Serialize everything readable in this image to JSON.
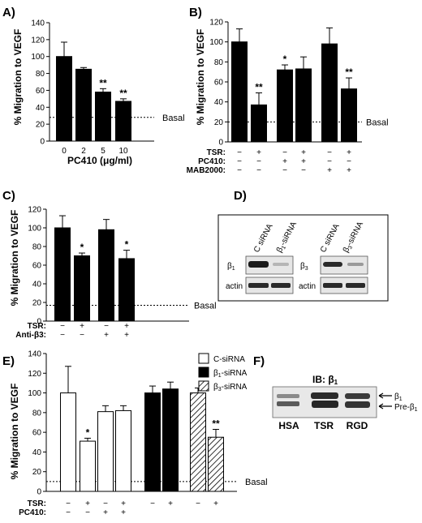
{
  "panels": [
    {
      "id": "A",
      "label": "A)",
      "chart_data": {
        "type": "bar",
        "ylabel": "% Migration to VEGF",
        "xlabel": "PC410 (μg/ml)",
        "ylim": [
          0,
          140
        ],
        "yticks": [
          0,
          20,
          40,
          60,
          80,
          100,
          120,
          140
        ],
        "categories": [
          "0",
          "2",
          "5",
          "10"
        ],
        "values": [
          100,
          85,
          58,
          47
        ],
        "errors": [
          17,
          2,
          4,
          3
        ],
        "fills": [
          "black",
          "black",
          "black",
          "black"
        ],
        "significance": [
          "",
          "",
          "**",
          "**"
        ],
        "basal": {
          "value": 28,
          "label": "Basal"
        }
      }
    },
    {
      "id": "B",
      "label": "B)",
      "chart_data": {
        "type": "bar",
        "ylabel": "% Migration to VEGF",
        "ylim": [
          0,
          120
        ],
        "yticks": [
          0,
          20,
          40,
          60,
          80,
          100,
          120
        ],
        "values": [
          100,
          37,
          72,
          73,
          98,
          53
        ],
        "errors": [
          13,
          12,
          5,
          12,
          16,
          11
        ],
        "fills": [
          "black",
          "black",
          "black",
          "black",
          "black",
          "black"
        ],
        "significance": [
          "",
          "**",
          "*",
          "",
          "",
          "**"
        ],
        "basal": {
          "value": 20,
          "label": "Basal"
        },
        "conditions": [
          {
            "name": "TSR:",
            "signs": [
              "−",
              "+",
              "−",
              "+",
              "−",
              "+"
            ]
          },
          {
            "name": "PC410:",
            "signs": [
              "−",
              "−",
              "+",
              "+",
              "−",
              "−"
            ]
          },
          {
            "name": "MAB2000:",
            "signs": [
              "−",
              "−",
              "−",
              "−",
              "+",
              "+"
            ]
          }
        ]
      }
    },
    {
      "id": "C",
      "label": "C)",
      "chart_data": {
        "type": "bar",
        "ylabel": "% Migration to VEGF",
        "ylim": [
          0,
          120
        ],
        "yticks": [
          0,
          20,
          40,
          60,
          80,
          100,
          120
        ],
        "values": [
          100,
          70,
          98,
          67
        ],
        "errors": [
          13,
          3,
          11,
          9
        ],
        "fills": [
          "black",
          "black",
          "black",
          "black"
        ],
        "significance": [
          "",
          "*",
          "",
          "*"
        ],
        "basal": {
          "value": 17,
          "label": "Basal"
        },
        "conditions": [
          {
            "name": "TSR:",
            "signs": [
              "−",
              "+",
              "−",
              "+"
            ]
          },
          {
            "name": "Anti-β3:",
            "signs": [
              "−",
              "−",
              "+",
              "+"
            ]
          }
        ]
      }
    },
    {
      "id": "E",
      "label": "E)",
      "chart_data": {
        "type": "bar",
        "ylabel": "% Migration to VEGF",
        "ylim": [
          0,
          140
        ],
        "yticks": [
          0,
          20,
          40,
          60,
          80,
          100,
          120,
          140
        ],
        "values": [
          100,
          51,
          81,
          82,
          100,
          104,
          100,
          55
        ],
        "errors": [
          27,
          3,
          6,
          5,
          7,
          7,
          5,
          8
        ],
        "fills": [
          "white",
          "white",
          "white",
          "white",
          "black",
          "black",
          "hatch",
          "hatch"
        ],
        "significance": [
          "",
          "*",
          "",
          "",
          "",
          "",
          "",
          "**"
        ],
        "basal": {
          "value": 10,
          "label": "Basal"
        },
        "conditions": [
          {
            "name": "TSR:",
            "signs": [
              "−",
              "+",
              "−",
              "+",
              "−",
              "+",
              "−",
              "+"
            ]
          },
          {
            "name": "PC410:",
            "signs": [
              "−",
              "−",
              "+",
              "+",
              "",
              "",
              "",
              ""
            ]
          }
        ],
        "legend": [
          {
            "label": "C-siRNA",
            "fill": "white"
          },
          {
            "label": "β1-siRNA",
            "fill": "black"
          },
          {
            "label": "β3-siRNA",
            "fill": "hatch"
          }
        ]
      }
    }
  ],
  "panel_d": {
    "label": "D)",
    "blots": [
      {
        "lanes": [
          "C siRNA",
          "β1-siRNA"
        ],
        "row_labels": [
          "β1",
          "actin"
        ]
      },
      {
        "lanes": [
          "C siRNA",
          "β3-siRNA"
        ],
        "row_labels": [
          "β3",
          "actin"
        ]
      }
    ]
  },
  "panel_f": {
    "label": "F)",
    "title": "IB: β1",
    "lanes": [
      "HSA",
      "TSR",
      "RGD"
    ],
    "band_labels": [
      "β1",
      "Pre-β1"
    ]
  }
}
